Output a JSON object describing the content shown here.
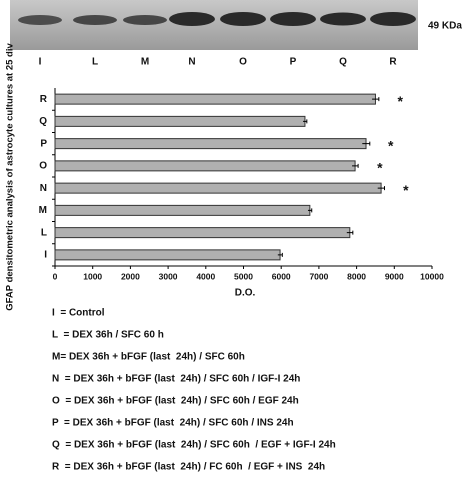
{
  "blot": {
    "label": "49 KDa",
    "lanes": [
      "I",
      "L",
      "M",
      "N",
      "O",
      "P",
      "Q",
      "R"
    ]
  },
  "chart_data": {
    "type": "bar",
    "orientation": "horizontal",
    "ylabel": "GFAP densitometric analysis of astrocyte cultures at 25 div",
    "xlabel": "D.O.",
    "categories": [
      "I",
      "L",
      "M",
      "N",
      "O",
      "P",
      "Q",
      "R"
    ],
    "values": [
      5970,
      7820,
      6760,
      8650,
      7960,
      8250,
      6630,
      8500
    ],
    "errors": [
      60,
      80,
      50,
      90,
      80,
      100,
      50,
      90
    ],
    "color": "#b0b0b0",
    "xlim": [
      0,
      10000
    ],
    "xticks": [
      0,
      1000,
      2000,
      3000,
      4000,
      5000,
      6000,
      7000,
      8000,
      9000,
      10000
    ],
    "annotations": [
      {
        "category": "N",
        "text": "*"
      },
      {
        "category": "O",
        "text": "*"
      },
      {
        "category": "P",
        "text": "*"
      },
      {
        "category": "R",
        "text": "*"
      }
    ]
  },
  "key": [
    "I  = Control",
    "L  = DEX 36h / SFC 60 h",
    "M= DEX 36h + bFGF (last  24h) / SFC 60h",
    "N  = DEX 36h + bFGF (last  24h) / SFC 60h / IGF-I 24h",
    "O  = DEX 36h + bFGF (last  24h) / SFC 60h / EGF 24h",
    "P  = DEX 36h + bFGF (last  24h) / SFC 60h / INS 24h",
    "Q  = DEX 36h + bFGF (last  24h) / SFC 60h  / EGF + IGF-I 24h",
    "R  = DEX 36h + bFGF (last  24h) / FC 60h  / EGF + INS  24h"
  ]
}
